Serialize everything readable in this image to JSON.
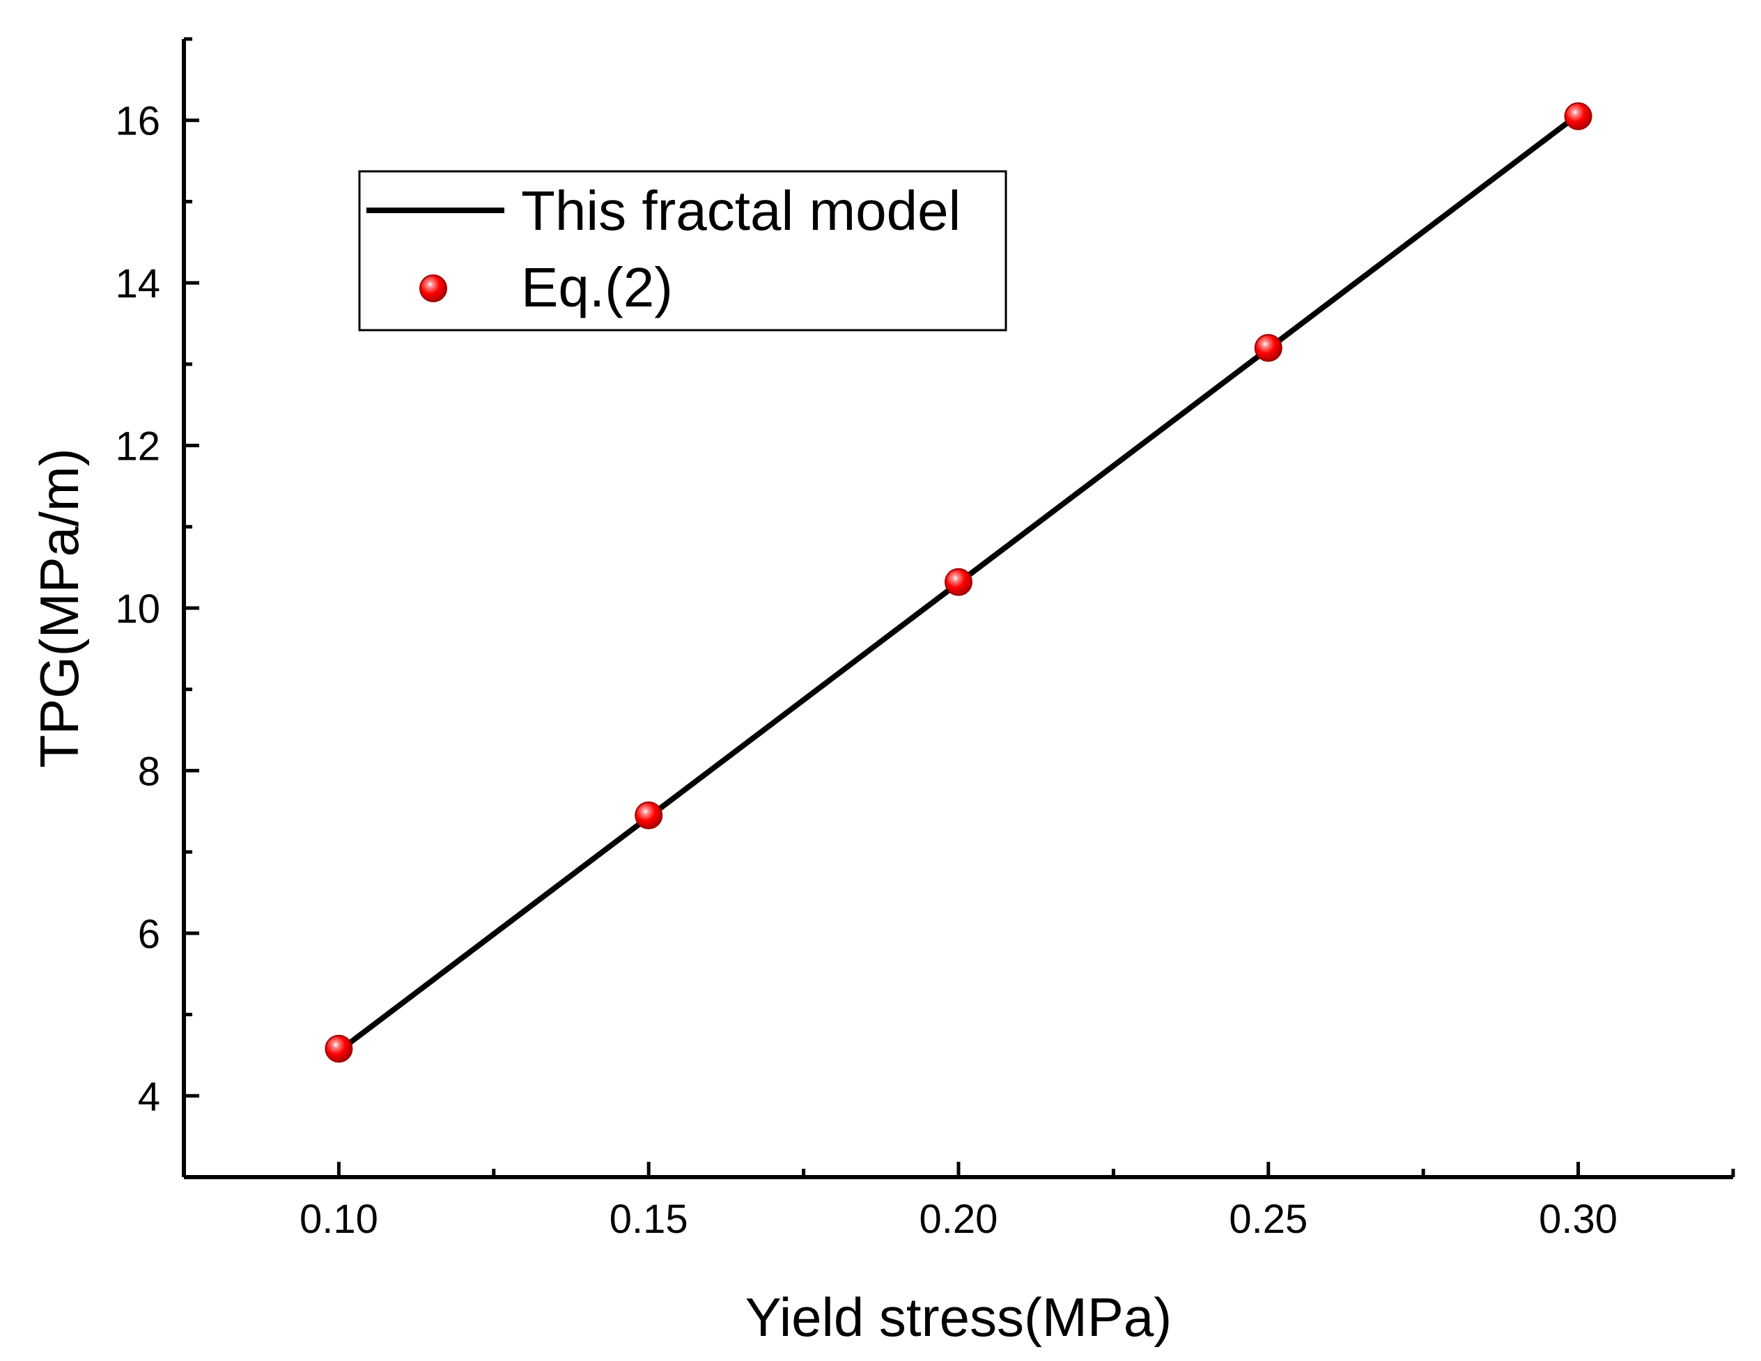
{
  "chart_data": {
    "type": "line",
    "title": "",
    "xlabel": "Yield stress(MPa)",
    "ylabel": "TPG(MPa/m)",
    "xlim": [
      0.075,
      0.325
    ],
    "ylim": [
      3,
      17
    ],
    "x_ticks": [
      0.1,
      0.15,
      0.2,
      0.25,
      0.3
    ],
    "x_tick_labels": [
      "0.10",
      "0.15",
      "0.20",
      "0.25",
      "0.30"
    ],
    "y_ticks": [
      4,
      6,
      8,
      10,
      12,
      14,
      16
    ],
    "y_tick_labels": [
      "4",
      "6",
      "8",
      "10",
      "12",
      "14",
      "16"
    ],
    "grid": false,
    "legend_position": "top-left",
    "series": [
      {
        "name": "This fractal model",
        "kind": "line",
        "color": "#000000",
        "x": [
          0.1,
          0.3
        ],
        "y": [
          4.55,
          16.07
        ]
      },
      {
        "name": "Eq.(2)",
        "kind": "scatter",
        "color": "#ff0000",
        "x": [
          0.1,
          0.15,
          0.2,
          0.25,
          0.3
        ],
        "y": [
          4.58,
          7.45,
          10.32,
          13.2,
          16.05
        ]
      }
    ]
  }
}
